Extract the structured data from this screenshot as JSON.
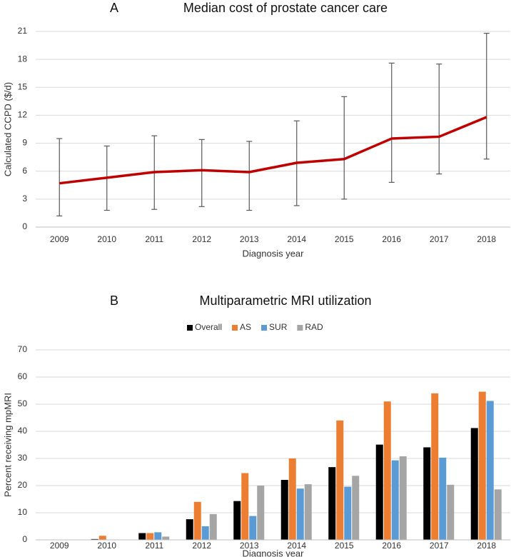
{
  "chart_data": [
    {
      "type": "line",
      "panel": "A",
      "title": "Median cost of prostate cancer care",
      "x_label": "Diagnosis year",
      "y_label": "Calculated CCPD ($/d)",
      "categories": [
        "2009",
        "2010",
        "2011",
        "2012",
        "2013",
        "2014",
        "2015",
        "2016",
        "2017",
        "2018"
      ],
      "values": [
        4.7,
        5.3,
        5.9,
        6.1,
        5.9,
        6.9,
        7.3,
        9.5,
        9.7,
        11.8
      ],
      "lower": [
        1.2,
        1.8,
        1.9,
        2.2,
        1.8,
        2.3,
        3.0,
        4.8,
        5.7,
        7.3
      ],
      "upper": [
        9.5,
        8.7,
        9.8,
        9.4,
        9.2,
        11.4,
        14.0,
        17.6,
        17.5,
        20.8
      ],
      "color": "#c00000",
      "error_color": "#595959",
      "ylim": [
        0,
        21
      ],
      "yticks": [
        0,
        3,
        6,
        9,
        12,
        15,
        18,
        21
      ],
      "grid": true
    },
    {
      "type": "bar",
      "panel": "B",
      "title": "Multiparametric MRI utilization",
      "x_label": "Diagnosis year",
      "y_label": "Percent receiving mpMRI",
      "categories": [
        "2009",
        "2010",
        "2011",
        "2012",
        "2013",
        "2014",
        "2015",
        "2016",
        "2017",
        "2018"
      ],
      "series": [
        {
          "name": "Overall",
          "color": "#000000",
          "values": [
            0,
            0.3,
            2.5,
            7.6,
            14.3,
            22.1,
            26.8,
            35.1,
            34.1,
            41.2
          ]
        },
        {
          "name": "AS",
          "color": "#ed7d31",
          "values": [
            0,
            1.5,
            2.5,
            14.0,
            24.6,
            30.0,
            44.0,
            51.0,
            54.0,
            54.6
          ]
        },
        {
          "name": "SUR",
          "color": "#5b9bd5",
          "values": [
            0,
            0,
            2.8,
            5.0,
            8.8,
            18.9,
            19.6,
            29.3,
            30.3,
            51.2
          ]
        },
        {
          "name": "RAD",
          "color": "#a5a5a5",
          "values": [
            0,
            0,
            1.2,
            9.5,
            20.0,
            20.5,
            23.6,
            30.8,
            20.3,
            18.6
          ]
        }
      ],
      "ylim": [
        0,
        70
      ],
      "yticks": [
        0,
        10,
        20,
        30,
        40,
        50,
        60,
        70
      ],
      "grid": true,
      "legend": "top"
    }
  ]
}
